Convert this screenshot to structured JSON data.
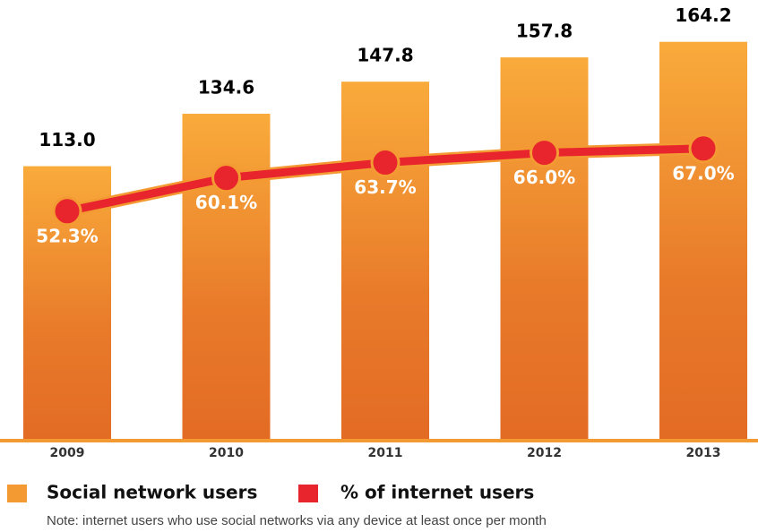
{
  "chart_data": {
    "type": "bar",
    "categories": [
      "2009",
      "2010",
      "2011",
      "2012",
      "2013"
    ],
    "series": [
      {
        "name": "Social network users",
        "color": "#f39a33",
        "values": [
          113.0,
          134.6,
          147.8,
          157.8,
          164.2
        ],
        "value_labels": [
          "113.0",
          "134.6",
          "147.8",
          "157.8",
          "164.2"
        ]
      },
      {
        "name": "% of internet users",
        "color": "#e8242c",
        "type": "line",
        "axis": "y2",
        "values": [
          52.3,
          60.1,
          63.7,
          66.0,
          67.0
        ],
        "value_labels": [
          "52.3%",
          "60.1%",
          "63.7%",
          "66.0%",
          "67.0%"
        ]
      }
    ],
    "ylim": [
      0,
      177
    ],
    "y2lim": [
      -1.5,
      99.3
    ],
    "note": "Note: internet users who use social networks via any device at least once per month"
  }
}
